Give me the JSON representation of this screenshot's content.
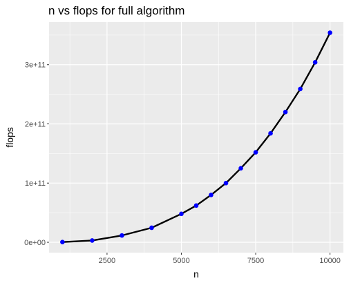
{
  "chart_data": {
    "type": "line",
    "title": "n vs flops for full algorithm",
    "xlabel": "n",
    "ylabel": "flops",
    "xlim": [
      550,
      10450
    ],
    "ylim": [
      -17500000000,
      372000000000
    ],
    "x_ticks": [
      2500,
      5000,
      7500,
      10000
    ],
    "x_tick_labels": [
      "2500",
      "5000",
      "7500",
      "10000"
    ],
    "y_ticks": [
      0,
      100000000000,
      200000000000,
      300000000000
    ],
    "y_tick_labels": [
      "0e+00",
      "1e+11",
      "2e+11",
      "3e+11"
    ],
    "grid": true,
    "series": [
      {
        "name": "flops",
        "line_color": "#000000",
        "point_color": "#0000ff",
        "x": [
          1000,
          2000,
          3000,
          4000,
          5000,
          5500,
          6000,
          6500,
          7000,
          7500,
          8000,
          8500,
          9000,
          9500,
          10000
        ],
        "values": [
          400000000,
          3000000000,
          11500000000,
          24500000000,
          48000000000,
          62000000000,
          80000000000,
          100000000000,
          125000000000,
          152000000000,
          184000000000,
          220000000000,
          259000000000,
          304000000000,
          354000000000
        ]
      }
    ]
  },
  "colors": {
    "panel_background": "#ebebeb",
    "grid_major": "#ffffff",
    "tick_text": "#4d4d4d"
  }
}
